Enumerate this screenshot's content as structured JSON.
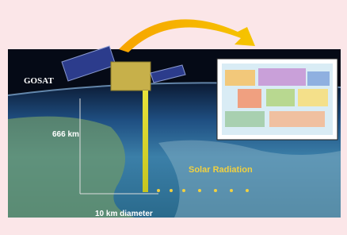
{
  "labels": {
    "satellite": "GOSAT",
    "altitude": "666 km",
    "radiation": "Solar Radiation",
    "footprint": "10 km diameter"
  }
}
